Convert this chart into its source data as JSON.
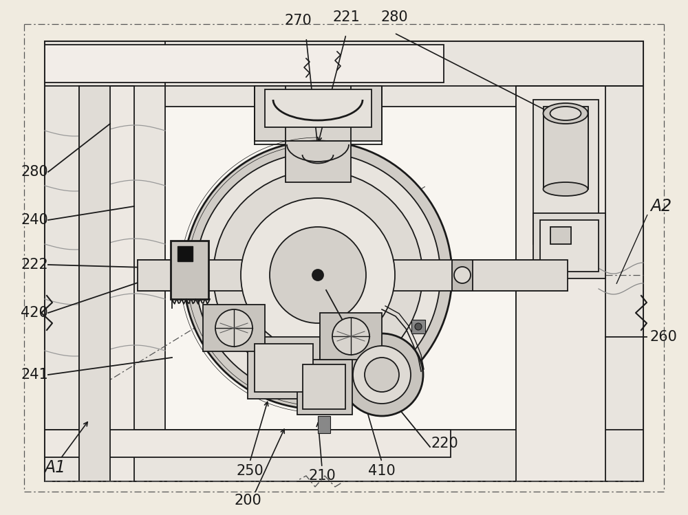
{
  "bg_color": "#f0ebe0",
  "line_color": "#1a1a1a",
  "fill_light": "#f8f5f0",
  "fill_mid": "#e8e4de",
  "fill_dark": "#d0ccc6",
  "fill_darker": "#b8b4ae",
  "label_fontsize": 15,
  "fig_w": 10.0,
  "fig_h": 7.49,
  "dpi": 100
}
